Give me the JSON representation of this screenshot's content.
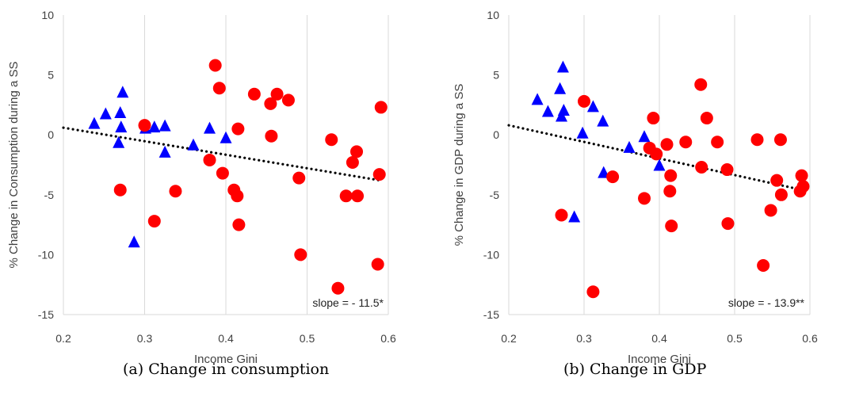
{
  "chart_data": [
    {
      "type": "scatter",
      "title": "",
      "caption": "(a) Change in consumption",
      "xlabel": "Income Gini",
      "ylabel": "% Change in Consumption during a SS",
      "xlim": [
        0.2,
        0.6
      ],
      "ylim": [
        -15,
        10
      ],
      "xticks": [
        "0.2",
        "0.3",
        "0.4",
        "0.5",
        "0.6"
      ],
      "yticks": [
        "10",
        "5",
        "0",
        "-5",
        "-10",
        "-15"
      ],
      "grid": "vertical",
      "annotation": "slope = - 11.5*",
      "trendline": {
        "x": [
          0.2,
          0.59
        ],
        "y": [
          0.6,
          -3.8
        ],
        "style": "dotted",
        "color": "#000000"
      },
      "series": [
        {
          "marker": "triangle",
          "color": "#0000FF",
          "points": [
            [
              0.238,
              0.9
            ],
            [
              0.252,
              1.7
            ],
            [
              0.268,
              -0.7
            ],
            [
              0.27,
              1.8
            ],
            [
              0.271,
              0.6
            ],
            [
              0.273,
              3.5
            ],
            [
              0.287,
              -9.0
            ],
            [
              0.301,
              0.5
            ],
            [
              0.312,
              0.6
            ],
            [
              0.325,
              0.7
            ],
            [
              0.325,
              -1.5
            ],
            [
              0.36,
              -0.9
            ],
            [
              0.38,
              0.5
            ],
            [
              0.4,
              -0.3
            ]
          ]
        },
        {
          "marker": "circle",
          "color": "#FF0000",
          "points": [
            [
              0.27,
              -4.6
            ],
            [
              0.3,
              0.8
            ],
            [
              0.312,
              -7.2
            ],
            [
              0.338,
              -4.7
            ],
            [
              0.38,
              -2.1
            ],
            [
              0.387,
              5.8
            ],
            [
              0.392,
              3.9
            ],
            [
              0.396,
              -3.2
            ],
            [
              0.41,
              -4.6
            ],
            [
              0.414,
              -5.1
            ],
            [
              0.415,
              0.5
            ],
            [
              0.416,
              -7.5
            ],
            [
              0.435,
              3.4
            ],
            [
              0.455,
              2.6
            ],
            [
              0.456,
              -0.1
            ],
            [
              0.463,
              3.4
            ],
            [
              0.477,
              2.9
            ],
            [
              0.49,
              -3.6
            ],
            [
              0.492,
              -10.0
            ],
            [
              0.53,
              -0.4
            ],
            [
              0.538,
              -12.8
            ],
            [
              0.548,
              -5.1
            ],
            [
              0.556,
              -2.3
            ],
            [
              0.561,
              -1.4
            ],
            [
              0.562,
              -5.1
            ],
            [
              0.587,
              -10.8
            ],
            [
              0.589,
              -3.3
            ],
            [
              0.591,
              2.3
            ]
          ]
        }
      ]
    },
    {
      "type": "scatter",
      "title": "",
      "caption": "(b) Change in GDP",
      "xlabel": "Income Gini",
      "ylabel": "% Change in GDP during a SS",
      "xlim": [
        0.2,
        0.6
      ],
      "ylim": [
        -15,
        10
      ],
      "xticks": [
        "0.2",
        "0.3",
        "0.4",
        "0.5",
        "0.6"
      ],
      "yticks": [
        "10",
        "5",
        "0",
        "-5",
        "-10",
        "-15"
      ],
      "grid": "vertical",
      "annotation": "slope = - 13.9**",
      "trendline": {
        "x": [
          0.2,
          0.59
        ],
        "y": [
          0.8,
          -4.6
        ],
        "style": "dotted",
        "color": "#000000"
      },
      "series": [
        {
          "marker": "triangle",
          "color": "#0000FF",
          "points": [
            [
              0.238,
              2.9
            ],
            [
              0.252,
              1.9
            ],
            [
              0.268,
              3.8
            ],
            [
              0.27,
              1.5
            ],
            [
              0.272,
              5.6
            ],
            [
              0.273,
              2.0
            ],
            [
              0.287,
              -6.9
            ],
            [
              0.298,
              0.1
            ],
            [
              0.312,
              2.3
            ],
            [
              0.325,
              1.1
            ],
            [
              0.326,
              -3.2
            ],
            [
              0.36,
              -1.1
            ],
            [
              0.38,
              -0.2
            ],
            [
              0.4,
              -2.6
            ]
          ]
        },
        {
          "marker": "circle",
          "color": "#FF0000",
          "points": [
            [
              0.27,
              -6.7
            ],
            [
              0.3,
              2.8
            ],
            [
              0.312,
              -13.1
            ],
            [
              0.338,
              -3.5
            ],
            [
              0.38,
              -5.3
            ],
            [
              0.387,
              -1.1
            ],
            [
              0.392,
              1.4
            ],
            [
              0.396,
              -1.6
            ],
            [
              0.41,
              -0.8
            ],
            [
              0.414,
              -4.7
            ],
            [
              0.415,
              -3.4
            ],
            [
              0.416,
              -7.6
            ],
            [
              0.435,
              -0.6
            ],
            [
              0.455,
              4.2
            ],
            [
              0.456,
              -2.7
            ],
            [
              0.463,
              1.4
            ],
            [
              0.477,
              -0.6
            ],
            [
              0.49,
              -2.9
            ],
            [
              0.491,
              -7.4
            ],
            [
              0.53,
              -0.4
            ],
            [
              0.538,
              -10.9
            ],
            [
              0.548,
              -6.3
            ],
            [
              0.556,
              -3.8
            ],
            [
              0.561,
              -0.4
            ],
            [
              0.562,
              -5.0
            ],
            [
              0.587,
              -4.7
            ],
            [
              0.589,
              -3.4
            ],
            [
              0.591,
              -4.3
            ]
          ]
        }
      ]
    }
  ]
}
